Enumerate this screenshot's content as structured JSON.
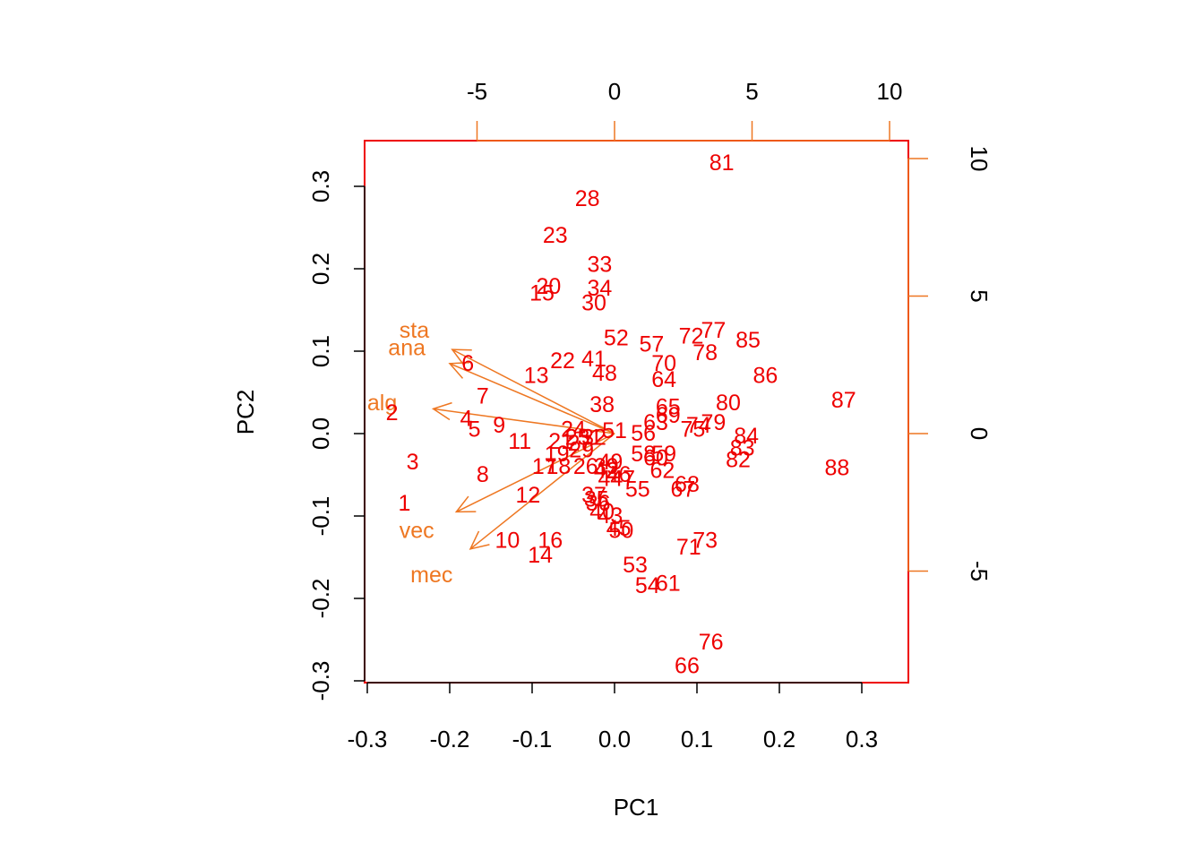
{
  "chart_data": {
    "type": "scatter",
    "subtype": "biplot",
    "xlabel": "PC1",
    "ylabel": "PC2",
    "xlim": [
      -0.3,
      0.35
    ],
    "ylim": [
      -0.3,
      0.35
    ],
    "x_ticks": [
      -0.3,
      -0.2,
      -0.1,
      0.0,
      0.1,
      0.2,
      0.3
    ],
    "y_ticks": [
      -0.3,
      -0.2,
      -0.1,
      0.0,
      0.1,
      0.2,
      0.3
    ],
    "x_tick_labels": [
      "-0.3",
      "-0.2",
      "-0.1",
      "0.0",
      "0.1",
      "0.2",
      "0.3"
    ],
    "y_tick_labels": [
      "-0.3",
      "-0.2",
      "-0.1",
      "0.0",
      "0.1",
      "0.2",
      "0.3"
    ],
    "top_ticks": [
      -5,
      0,
      5,
      10
    ],
    "top_tick_labels": [
      "-5",
      "0",
      "5",
      "10"
    ],
    "right_ticks": [
      -5,
      0,
      5,
      10
    ],
    "right_tick_labels": [
      "-5",
      "0",
      "5",
      "10"
    ],
    "point_color": "#ee0000",
    "arrow_color": "#ee7722",
    "frame_color": "#ee0000",
    "points": [
      {
        "label": "1",
        "x": -0.255,
        "y": -0.085
      },
      {
        "label": "2",
        "x": -0.27,
        "y": 0.025
      },
      {
        "label": "3",
        "x": -0.245,
        "y": -0.035
      },
      {
        "label": "4",
        "x": -0.18,
        "y": 0.018
      },
      {
        "label": "5",
        "x": -0.17,
        "y": 0.005
      },
      {
        "label": "6",
        "x": -0.178,
        "y": 0.085
      },
      {
        "label": "7",
        "x": -0.16,
        "y": 0.045
      },
      {
        "label": "8",
        "x": -0.16,
        "y": -0.05
      },
      {
        "label": "9",
        "x": -0.14,
        "y": 0.01
      },
      {
        "label": "10",
        "x": -0.13,
        "y": -0.13
      },
      {
        "label": "11",
        "x": -0.115,
        "y": -0.01
      },
      {
        "label": "12",
        "x": -0.105,
        "y": -0.075
      },
      {
        "label": "13",
        "x": -0.095,
        "y": 0.07
      },
      {
        "label": "14",
        "x": -0.09,
        "y": -0.148
      },
      {
        "label": "15",
        "x": -0.088,
        "y": 0.17
      },
      {
        "label": "16",
        "x": -0.078,
        "y": -0.13
      },
      {
        "label": "17",
        "x": -0.085,
        "y": -0.04
      },
      {
        "label": "18",
        "x": -0.068,
        "y": -0.04
      },
      {
        "label": "19",
        "x": -0.07,
        "y": -0.025
      },
      {
        "label": "20",
        "x": -0.08,
        "y": 0.178
      },
      {
        "label": "21",
        "x": -0.065,
        "y": -0.01
      },
      {
        "label": "22",
        "x": -0.063,
        "y": 0.088
      },
      {
        "label": "23",
        "x": -0.072,
        "y": 0.24
      },
      {
        "label": "24",
        "x": -0.05,
        "y": 0.005
      },
      {
        "label": "25",
        "x": -0.045,
        "y": -0.005
      },
      {
        "label": "26",
        "x": -0.035,
        "y": -0.04
      },
      {
        "label": "27",
        "x": -0.042,
        "y": -0.012
      },
      {
        "label": "28",
        "x": -0.033,
        "y": 0.285
      },
      {
        "label": "29",
        "x": -0.04,
        "y": -0.02
      },
      {
        "label": "30",
        "x": -0.025,
        "y": 0.158
      },
      {
        "label": "31",
        "x": -0.03,
        "y": -0.005
      },
      {
        "label": "32",
        "x": -0.025,
        "y": -0.005
      },
      {
        "label": "33",
        "x": -0.018,
        "y": 0.205
      },
      {
        "label": "34",
        "x": -0.018,
        "y": 0.176
      },
      {
        "label": "35",
        "x": -0.022,
        "y": -0.08
      },
      {
        "label": "36",
        "x": -0.02,
        "y": -0.085
      },
      {
        "label": "37",
        "x": -0.025,
        "y": -0.075
      },
      {
        "label": "38",
        "x": -0.015,
        "y": 0.035
      },
      {
        "label": "39",
        "x": -0.01,
        "y": -0.04
      },
      {
        "label": "40",
        "x": -0.015,
        "y": -0.095
      },
      {
        "label": "41",
        "x": -0.025,
        "y": 0.09
      },
      {
        "label": "42",
        "x": -0.01,
        "y": -0.045
      },
      {
        "label": "43",
        "x": -0.005,
        "y": -0.1
      },
      {
        "label": "44",
        "x": -0.005,
        "y": -0.055
      },
      {
        "label": "45",
        "x": 0.005,
        "y": -0.115
      },
      {
        "label": "46",
        "x": 0.005,
        "y": -0.05
      },
      {
        "label": "47",
        "x": 0.01,
        "y": -0.055
      },
      {
        "label": "48",
        "x": -0.012,
        "y": 0.073
      },
      {
        "label": "49",
        "x": -0.005,
        "y": -0.035
      },
      {
        "label": "50",
        "x": 0.008,
        "y": -0.118
      },
      {
        "label": "51",
        "x": 0.0,
        "y": 0.003
      },
      {
        "label": "52",
        "x": 0.002,
        "y": 0.116
      },
      {
        "label": "53",
        "x": 0.025,
        "y": -0.16
      },
      {
        "label": "54",
        "x": 0.04,
        "y": -0.185
      },
      {
        "label": "55",
        "x": 0.028,
        "y": -0.068
      },
      {
        "label": "56",
        "x": 0.035,
        "y": 0.0
      },
      {
        "label": "57",
        "x": 0.045,
        "y": 0.108
      },
      {
        "label": "58",
        "x": 0.035,
        "y": -0.025
      },
      {
        "label": "59",
        "x": 0.06,
        "y": -0.025
      },
      {
        "label": "60",
        "x": 0.05,
        "y": -0.03
      },
      {
        "label": "61",
        "x": 0.065,
        "y": -0.182
      },
      {
        "label": "62",
        "x": 0.058,
        "y": -0.045
      },
      {
        "label": "63",
        "x": 0.05,
        "y": 0.013
      },
      {
        "label": "64",
        "x": 0.06,
        "y": 0.065
      },
      {
        "label": "65",
        "x": 0.065,
        "y": 0.032
      },
      {
        "label": "66",
        "x": 0.088,
        "y": -0.282
      },
      {
        "label": "67",
        "x": 0.083,
        "y": -0.068
      },
      {
        "label": "68",
        "x": 0.088,
        "y": -0.062
      },
      {
        "label": "69",
        "x": 0.065,
        "y": 0.022
      },
      {
        "label": "70",
        "x": 0.06,
        "y": 0.085
      },
      {
        "label": "71",
        "x": 0.09,
        "y": -0.138
      },
      {
        "label": "72",
        "x": 0.093,
        "y": 0.118
      },
      {
        "label": "73",
        "x": 0.11,
        "y": -0.13
      },
      {
        "label": "74",
        "x": 0.102,
        "y": 0.01
      },
      {
        "label": "75",
        "x": 0.095,
        "y": 0.005
      },
      {
        "label": "76",
        "x": 0.117,
        "y": -0.253
      },
      {
        "label": "77",
        "x": 0.12,
        "y": 0.125
      },
      {
        "label": "78",
        "x": 0.11,
        "y": 0.098
      },
      {
        "label": "79",
        "x": 0.12,
        "y": 0.013
      },
      {
        "label": "80",
        "x": 0.138,
        "y": 0.037
      },
      {
        "label": "81",
        "x": 0.13,
        "y": 0.328
      },
      {
        "label": "82",
        "x": 0.15,
        "y": -0.032
      },
      {
        "label": "83",
        "x": 0.155,
        "y": -0.018
      },
      {
        "label": "84",
        "x": 0.16,
        "y": -0.003
      },
      {
        "label": "85",
        "x": 0.162,
        "y": 0.113
      },
      {
        "label": "86",
        "x": 0.183,
        "y": 0.07
      },
      {
        "label": "87",
        "x": 0.278,
        "y": 0.04
      },
      {
        "label": "88",
        "x": 0.27,
        "y": -0.042
      }
    ],
    "variables": [
      {
        "label": "sta",
        "x": -0.197,
        "y": 0.102
      },
      {
        "label": "ana",
        "x": -0.2,
        "y": 0.085
      },
      {
        "label": "alg",
        "x": -0.22,
        "y": 0.03
      },
      {
        "label": "vec",
        "x": -0.192,
        "y": -0.095
      },
      {
        "label": "mec",
        "x": -0.175,
        "y": -0.14
      }
    ],
    "variable_label_positions": [
      {
        "label": "sta",
        "x": -0.243,
        "y": 0.125
      },
      {
        "label": "ana",
        "x": -0.252,
        "y": 0.104
      },
      {
        "label": "alg",
        "x": -0.282,
        "y": 0.037
      },
      {
        "label": "vec",
        "x": -0.24,
        "y": -0.118
      },
      {
        "label": "mec",
        "x": -0.222,
        "y": -0.172
      }
    ]
  }
}
